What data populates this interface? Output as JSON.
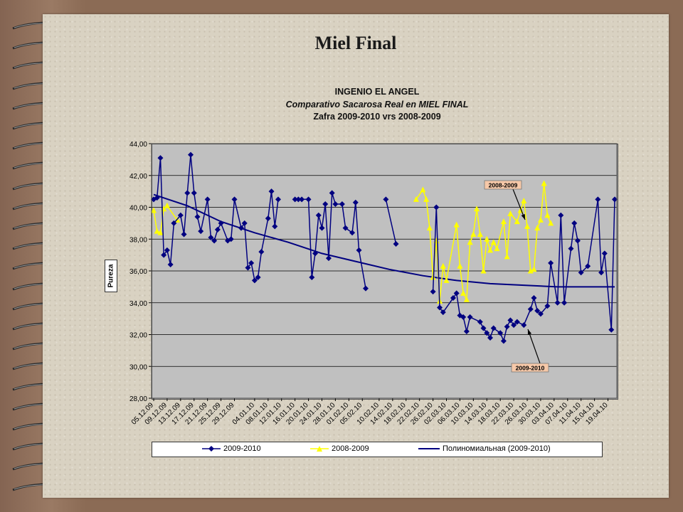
{
  "slide": {
    "title": "Miel Final"
  },
  "chart_titles": {
    "line1": "INGENIO EL ANGEL",
    "line2": "Comparativo Sacarosa Real en MIEL FINAL",
    "line3": "Zafra 2009-2010 vrs 2008-2009"
  },
  "colors": {
    "series_2009_2010": "#000080",
    "series_2008_2009": "#ffff00",
    "annotation_bg": "#f6c8a8",
    "plot_bg": "#c0c0c0"
  },
  "chart_data": {
    "type": "line",
    "ylabel": "Pureza",
    "ylim": [
      28,
      44
    ],
    "yticks": [
      "28,00",
      "30,00",
      "32,00",
      "34,00",
      "36,00",
      "38,00",
      "40,00",
      "42,00",
      "44,00"
    ],
    "grid": "horizontal",
    "legend_position": "bottom",
    "x_tick_labels": [
      "05.12.09",
      "09.12.09",
      "13.12.09",
      "17.12.09",
      "21.12.09",
      "25.12.09",
      "29.12.09",
      "04.01.10",
      "08.01.10",
      "12.01.10",
      "16.01.10",
      "20.01.10",
      "24.01.10",
      "28.01.10",
      "01.02.10",
      "05.02.10",
      "10.02.10",
      "14.02.10",
      "18.02.10",
      "22.02.10",
      "26.02.10",
      "02.03.10",
      "06.03.10",
      "10.03.10",
      "14.03.10",
      "18.03.10",
      "22.03.10",
      "26.03.10",
      "30.03.10",
      "03.04.10",
      "07.04.10",
      "11.04.10",
      "15.04.10",
      "19.04.10"
    ],
    "series": [
      {
        "name": "2009-2010",
        "marker": "diamond",
        "points": [
          [
            "05.12.09",
            40.5
          ],
          [
            "06.12.09",
            40.6
          ],
          [
            "07.12.09",
            43.1
          ],
          [
            "08.12.09",
            37.0
          ],
          [
            "09.12.09",
            37.3
          ],
          [
            "10.12.09",
            36.4
          ],
          [
            "11.12.09",
            39.0
          ],
          [
            "13.12.09",
            39.5
          ],
          [
            "14.12.09",
            38.3
          ],
          [
            "15.12.09",
            40.9
          ],
          [
            "16.12.09",
            43.3
          ],
          [
            "17.12.09",
            40.9
          ],
          [
            "18.12.09",
            39.4
          ],
          [
            "19.12.09",
            38.5
          ],
          [
            "21.12.09",
            40.5
          ],
          [
            "22.12.09",
            38.1
          ],
          [
            "23.12.09",
            37.9
          ],
          [
            "24.12.09",
            38.6
          ],
          [
            "25.12.09",
            39.0
          ],
          [
            "27.12.09",
            37.9
          ],
          [
            "28.12.09",
            38.0
          ],
          [
            "29.12.09",
            40.5
          ],
          [
            "31.12.09",
            38.7
          ],
          [
            "01.01.10",
            39.0
          ],
          [
            "02.01.10",
            36.2
          ],
          [
            "03.01.10",
            36.5
          ],
          [
            "04.01.10",
            35.4
          ],
          [
            "05.01.10",
            35.6
          ],
          [
            "06.01.10",
            37.2
          ],
          [
            "08.01.10",
            39.3
          ],
          [
            "09.01.10",
            41.0
          ],
          [
            "10.01.10",
            38.8
          ],
          [
            "11.01.10",
            40.5
          ],
          [
            "16.01.10",
            40.5
          ],
          [
            "17.01.10",
            40.5
          ],
          [
            "18.01.10",
            40.5
          ],
          [
            "20.01.10",
            40.5
          ],
          [
            "21.01.10",
            35.6
          ],
          [
            "22.01.10",
            37.1
          ],
          [
            "23.01.10",
            39.5
          ],
          [
            "24.01.10",
            38.7
          ],
          [
            "25.01.10",
            40.2
          ],
          [
            "26.01.10",
            36.8
          ],
          [
            "27.01.10",
            40.9
          ],
          [
            "28.01.10",
            40.2
          ],
          [
            "30.01.10",
            40.2
          ],
          [
            "31.01.10",
            38.7
          ],
          [
            "02.02.10",
            38.4
          ],
          [
            "03.02.10",
            40.3
          ],
          [
            "04.02.10",
            37.3
          ],
          [
            "06.02.10",
            34.9
          ],
          [
            "12.02.10",
            40.5
          ],
          [
            "15.02.10",
            37.7
          ],
          [
            "26.02.10",
            34.7
          ],
          [
            "27.02.10",
            40.0
          ],
          [
            "28.02.10",
            33.7
          ],
          [
            "01.03.10",
            33.4
          ],
          [
            "04.03.10",
            34.3
          ],
          [
            "05.03.10",
            34.6
          ],
          [
            "06.03.10",
            33.2
          ],
          [
            "07.03.10",
            33.1
          ],
          [
            "08.03.10",
            32.2
          ],
          [
            "09.03.10",
            33.1
          ],
          [
            "12.03.10",
            32.8
          ],
          [
            "13.03.10",
            32.4
          ],
          [
            "14.03.10",
            32.1
          ],
          [
            "15.03.10",
            31.8
          ],
          [
            "16.03.10",
            32.4
          ],
          [
            "18.03.10",
            32.1
          ],
          [
            "19.03.10",
            31.6
          ],
          [
            "20.03.10",
            32.5
          ],
          [
            "21.03.10",
            32.9
          ],
          [
            "22.03.10",
            32.6
          ],
          [
            "23.03.10",
            32.8
          ],
          [
            "25.03.10",
            32.6
          ],
          [
            "27.03.10",
            33.6
          ],
          [
            "28.03.10",
            34.3
          ],
          [
            "29.03.10",
            33.5
          ],
          [
            "30.03.10",
            33.3
          ],
          [
            "01.04.10",
            33.8
          ],
          [
            "02.04.10",
            36.5
          ],
          [
            "04.04.10",
            34.0
          ],
          [
            "05.04.10",
            39.5
          ],
          [
            "06.04.10",
            34.0
          ],
          [
            "08.04.10",
            37.4
          ],
          [
            "09.04.10",
            39.0
          ],
          [
            "10.04.10",
            37.9
          ],
          [
            "11.04.10",
            35.9
          ],
          [
            "13.04.10",
            36.3
          ],
          [
            "16.04.10",
            40.5
          ],
          [
            "17.04.10",
            35.9
          ],
          [
            "18.04.10",
            37.1
          ],
          [
            "20.04.10",
            32.3
          ],
          [
            "21.04.10",
            40.5
          ]
        ]
      },
      {
        "name": "2008-2009",
        "marker": "triangle",
        "points": [
          [
            "05.12.09",
            39.8
          ],
          [
            "06.12.09",
            38.5
          ],
          [
            "07.12.09",
            38.4
          ],
          [
            "08.12.09",
            39.9
          ],
          [
            "09.12.09",
            40.1
          ],
          [
            "12.12.09",
            39.2
          ],
          [
            "21.02.10",
            40.5
          ],
          [
            "23.02.10",
            41.1
          ],
          [
            "24.02.10",
            40.5
          ],
          [
            "25.02.10",
            38.7
          ],
          [
            "26.02.10",
            35.6
          ],
          [
            "27.02.10",
            37.9
          ],
          [
            "28.02.10",
            34.1
          ],
          [
            "01.03.10",
            36.3
          ],
          [
            "02.03.10",
            35.4
          ],
          [
            "05.03.10",
            38.9
          ],
          [
            "06.03.10",
            36.3
          ],
          [
            "07.03.10",
            34.6
          ],
          [
            "08.03.10",
            34.2
          ],
          [
            "09.03.10",
            37.8
          ],
          [
            "10.03.10",
            38.3
          ],
          [
            "11.03.10",
            39.9
          ],
          [
            "12.03.10",
            38.3
          ],
          [
            "13.03.10",
            36.0
          ],
          [
            "14.03.10",
            38.0
          ],
          [
            "15.03.10",
            37.3
          ],
          [
            "16.03.10",
            37.8
          ],
          [
            "17.03.10",
            37.4
          ],
          [
            "19.03.10",
            39.1
          ],
          [
            "20.03.10",
            36.9
          ],
          [
            "21.03.10",
            39.6
          ],
          [
            "23.03.10",
            39.1
          ],
          [
            "24.03.10",
            39.8
          ],
          [
            "25.03.10",
            40.4
          ],
          [
            "26.03.10",
            38.8
          ],
          [
            "27.03.10",
            36.0
          ],
          [
            "28.03.10",
            36.1
          ],
          [
            "29.03.10",
            38.7
          ],
          [
            "30.03.10",
            39.2
          ],
          [
            "31.03.10",
            41.5
          ],
          [
            "01.04.10",
            39.5
          ],
          [
            "02.04.10",
            39.0
          ]
        ]
      },
      {
        "name": "Полиномиальная (2009-2010)",
        "marker": "none",
        "points": [
          [
            "05.12.09",
            40.8
          ],
          [
            "15.12.09",
            40.1
          ],
          [
            "25.12.09",
            39.1
          ],
          [
            "04.01.10",
            38.4
          ],
          [
            "14.01.10",
            37.8
          ],
          [
            "24.01.10",
            37.1
          ],
          [
            "03.02.10",
            36.6
          ],
          [
            "13.02.10",
            36.1
          ],
          [
            "23.02.10",
            35.7
          ],
          [
            "05.03.10",
            35.4
          ],
          [
            "15.03.10",
            35.2
          ],
          [
            "25.03.10",
            35.1
          ],
          [
            "04.04.10",
            35.0
          ],
          [
            "14.04.10",
            35.0
          ],
          [
            "21.04.10",
            35.0
          ]
        ]
      }
    ],
    "annotations": [
      {
        "text": "2008-2009",
        "points_to": "2008-2009"
      },
      {
        "text": "2009-2010",
        "points_to": "2009-2010"
      }
    ]
  }
}
